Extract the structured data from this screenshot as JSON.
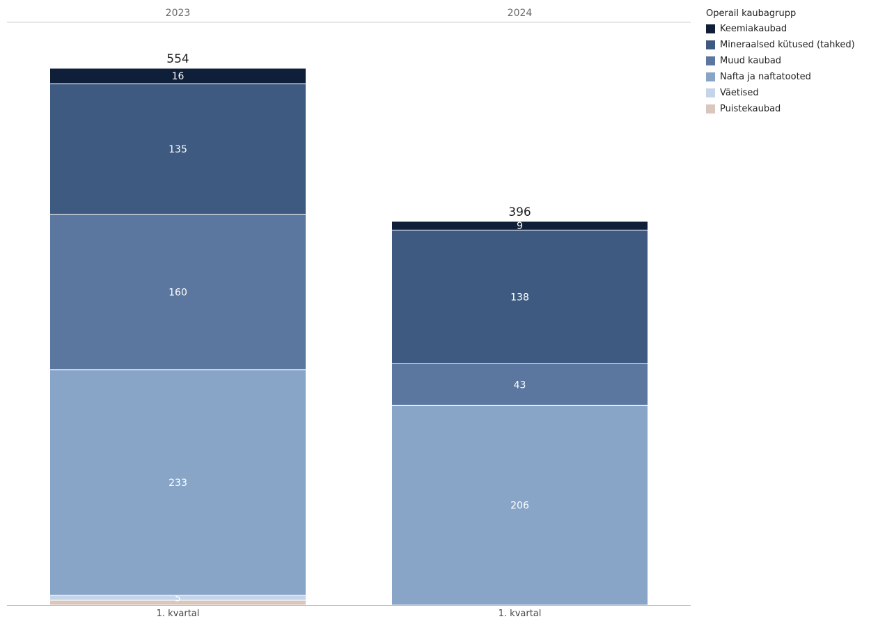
{
  "chart_data": {
    "type": "bar",
    "stacked": true,
    "panels": [
      {
        "header": "2023",
        "category": "1. kvartal",
        "total": "554"
      },
      {
        "header": "2024",
        "category": "1. kvartal",
        "total": "396"
      }
    ],
    "legend_title": "Operail kaubagrupp",
    "legend_placement": "top-right",
    "series": [
      {
        "name": "Keemiakaubad",
        "color": "#0f1f3a",
        "values": [
          16,
          9
        ],
        "labels": [
          "16",
          "9"
        ]
      },
      {
        "name": "Mineraalsed kütused (tahked)",
        "color": "#3e5a81",
        "values": [
          135,
          138
        ],
        "labels": [
          "135",
          "138"
        ]
      },
      {
        "name": "Muud kaubad",
        "color": "#5b769f",
        "values": [
          160,
          43
        ],
        "labels": [
          "160",
          "43"
        ]
      },
      {
        "name": "Nafta ja naftatooted",
        "color": "#88a5c8",
        "values": [
          233,
          206
        ],
        "labels": [
          "233",
          "206"
        ]
      },
      {
        "name": "Väetised",
        "color": "#c4d5e9",
        "values": [
          5,
          0
        ],
        "labels": [
          "5",
          "0"
        ]
      },
      {
        "name": "Puistekaubad",
        "color": "#d9c7bd",
        "values": [
          5,
          0
        ],
        "labels": [
          "",
          ""
        ]
      }
    ],
    "ylim": [
      0,
      554
    ],
    "grid": false
  }
}
